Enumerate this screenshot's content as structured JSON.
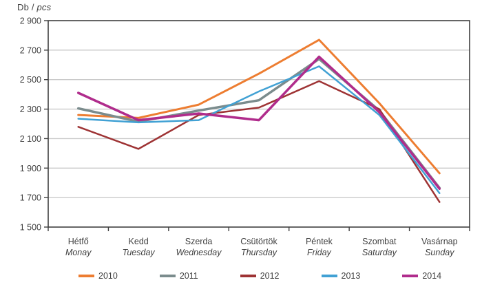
{
  "chart_data": {
    "type": "line",
    "ylabel_prefix": "Db / ",
    "ylabel_italic": "pcs",
    "grid": true,
    "legend_position": "bottom",
    "ylim": [
      1500,
      2900
    ],
    "yticks": [
      {
        "value": 2900,
        "label": "2 900"
      },
      {
        "value": 2700,
        "label": "2 700"
      },
      {
        "value": 2500,
        "label": "2 500"
      },
      {
        "value": 2300,
        "label": "2 300"
      },
      {
        "value": 2100,
        "label": "2 100"
      },
      {
        "value": 1900,
        "label": "1 900"
      },
      {
        "value": 1700,
        "label": "1 700"
      },
      {
        "value": 1500,
        "label": "1 500"
      }
    ],
    "categories": [
      {
        "hu": "Hétfő",
        "en": "Monay"
      },
      {
        "hu": "Kedd",
        "en": "Tuesday"
      },
      {
        "hu": "Szerda",
        "en": "Wednesday"
      },
      {
        "hu": "Csütörtök",
        "en": "Thursday"
      },
      {
        "hu": "Péntek",
        "en": "Friday"
      },
      {
        "hu": "Szombat",
        "en": "Saturday"
      },
      {
        "hu": "Vasárnap",
        "en": "Sunday"
      }
    ],
    "series": [
      {
        "name": "2010",
        "color": "#ED7D31",
        "width": 3.0,
        "values": [
          2260,
          2240,
          2330,
          2540,
          2770,
          2340,
          1865
        ]
      },
      {
        "name": "2011",
        "color": "#7B8C8D",
        "width": 3.5,
        "values": [
          2305,
          2215,
          2290,
          2360,
          2640,
          2290,
          1765
        ]
      },
      {
        "name": "2012",
        "color": "#9E3334",
        "width": 2.5,
        "values": [
          2180,
          2030,
          2260,
          2310,
          2490,
          2300,
          1670
        ]
      },
      {
        "name": "2013",
        "color": "#41A1D4",
        "width": 2.5,
        "values": [
          2235,
          2210,
          2225,
          2420,
          2590,
          2260,
          1730
        ]
      },
      {
        "name": "2014",
        "color": "#B02C8C",
        "width": 3.5,
        "values": [
          2410,
          2225,
          2270,
          2225,
          2655,
          2280,
          1760
        ]
      }
    ],
    "colors": {
      "plot_border": "#3f3f3f",
      "gridline": "#c9c9c9",
      "tick_text": "#404040"
    }
  }
}
